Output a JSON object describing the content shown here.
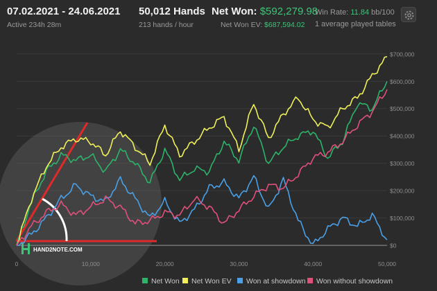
{
  "header": {
    "date_range": "07.02.2021 - 24.06.2021",
    "active_time": "Active 234h 28m",
    "hands": "50,012 Hands",
    "hands_per_hour": "213 hands / hour",
    "net_won_label": "Net Won:",
    "net_won_value": "$592,279.98",
    "net_won_ev_label": "Net Won  EV:",
    "net_won_ev_value": "$687,594.02",
    "win_rate_label": "Win Rate:",
    "win_rate_value": "11.84",
    "win_rate_unit": "bb/100",
    "tables": "1 average played tables",
    "settings_icon": "gear-icon"
  },
  "watermark": {
    "brand_text": "HAND2NOTE.COM"
  },
  "chart_data": {
    "type": "line",
    "xlim": [
      0,
      50000
    ],
    "ylim": [
      -20000,
      740000
    ],
    "x_ticks": [
      "0",
      "10,000",
      "20,000",
      "30,000",
      "40,000",
      "50,000"
    ],
    "y_ticks": [
      "$0",
      "$100,000",
      "$200,000",
      "$300,000",
      "$400,000",
      "$500,000",
      "$600,000",
      "$700,000"
    ],
    "x": [
      0,
      2000,
      4000,
      6000,
      8000,
      10000,
      12000,
      14000,
      16000,
      18000,
      20000,
      22000,
      24000,
      26000,
      28000,
      30000,
      32000,
      34000,
      36000,
      38000,
      40000,
      42000,
      44000,
      46000,
      48000,
      50000
    ],
    "series": [
      {
        "name": "Net Won",
        "color": "#2db36a",
        "values": [
          0,
          160000,
          270000,
          330000,
          310000,
          330000,
          270000,
          350000,
          300000,
          230000,
          350000,
          240000,
          280000,
          270000,
          380000,
          310000,
          440000,
          300000,
          360000,
          400000,
          420000,
          320000,
          380000,
          520000,
          500000,
          600000
        ]
      },
      {
        "name": "Net Won  EV",
        "color": "#f0f05a",
        "values": [
          0,
          170000,
          290000,
          360000,
          390000,
          380000,
          330000,
          420000,
          360000,
          300000,
          440000,
          330000,
          380000,
          430000,
          470000,
          350000,
          520000,
          390000,
          480000,
          540000,
          460000,
          430000,
          500000,
          540000,
          620000,
          690000
        ]
      },
      {
        "name": "Won at showdown",
        "color": "#4aa0e6",
        "values": [
          0,
          40000,
          100000,
          170000,
          220000,
          180000,
          160000,
          240000,
          170000,
          100000,
          160000,
          80000,
          130000,
          210000,
          230000,
          170000,
          250000,
          130000,
          240000,
          90000,
          0,
          60000,
          100000,
          70000,
          110000,
          20000
        ]
      },
      {
        "name": "Won without showdown",
        "color": "#e0507a",
        "values": [
          0,
          70000,
          120000,
          150000,
          110000,
          140000,
          170000,
          140000,
          80000,
          90000,
          120000,
          110000,
          170000,
          140000,
          80000,
          130000,
          180000,
          220000,
          210000,
          260000,
          320000,
          340000,
          380000,
          440000,
          490000,
          570000
        ]
      }
    ]
  }
}
